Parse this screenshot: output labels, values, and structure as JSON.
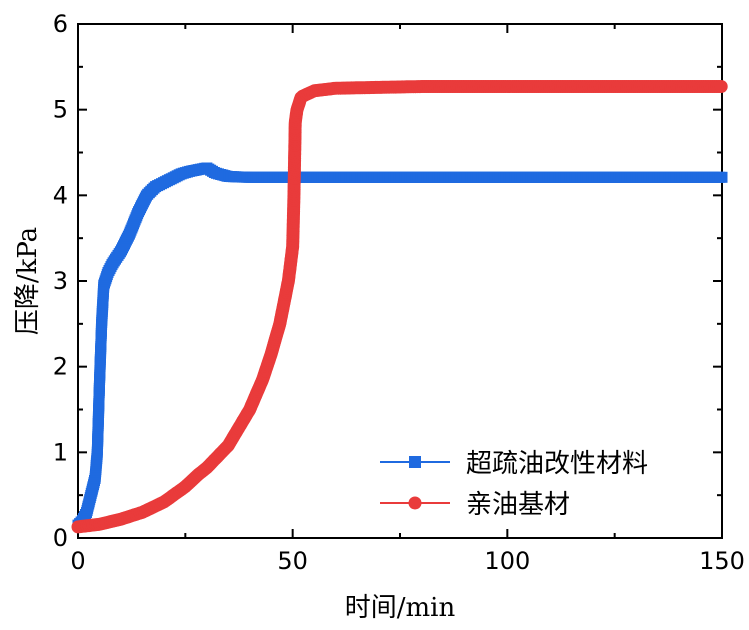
{
  "chart_data": {
    "type": "line",
    "xlabel": "时间/min",
    "ylabel": "压降/kPa",
    "xlim": [
      0,
      150
    ],
    "ylim": [
      0,
      6
    ],
    "xticks": [
      "0",
      "50",
      "100",
      "150"
    ],
    "yticks": [
      "0",
      "1",
      "2",
      "3",
      "4",
      "5",
      "6"
    ],
    "grid": false,
    "legend_position": "bottom-right",
    "series": [
      {
        "name": "超疏油改性材料",
        "color": "#1f6ae0",
        "marker": "square",
        "x": [
          0,
          1,
          2,
          3,
          4,
          4.5,
          5,
          5.5,
          6,
          7,
          8,
          10,
          12,
          14,
          16,
          18,
          20,
          22,
          24,
          26,
          28,
          30,
          32,
          35,
          40,
          50,
          60,
          80,
          100,
          120,
          140,
          150
        ],
        "y": [
          0.15,
          0.2,
          0.3,
          0.5,
          0.7,
          1.0,
          1.8,
          2.5,
          2.95,
          3.1,
          3.2,
          3.35,
          3.55,
          3.8,
          4.0,
          4.1,
          4.15,
          4.2,
          4.25,
          4.28,
          4.3,
          4.32,
          4.26,
          4.22,
          4.21,
          4.21,
          4.21,
          4.21,
          4.21,
          4.21,
          4.21,
          4.21
        ]
      },
      {
        "name": "亲油基材",
        "color": "#e93b3b",
        "marker": "circle",
        "x": [
          0,
          5,
          10,
          15,
          20,
          25,
          28,
          30,
          35,
          40,
          43,
          45,
          47,
          48,
          49,
          49.5,
          50,
          50.3,
          50.6,
          51,
          52,
          55,
          60,
          70,
          80,
          100,
          120,
          140,
          150
        ],
        "y": [
          0.13,
          0.16,
          0.22,
          0.3,
          0.42,
          0.6,
          0.74,
          0.82,
          1.08,
          1.5,
          1.85,
          2.15,
          2.5,
          2.75,
          3.0,
          3.2,
          3.4,
          4.0,
          4.85,
          5.0,
          5.15,
          5.22,
          5.25,
          5.26,
          5.27,
          5.27,
          5.27,
          5.27,
          5.27
        ]
      }
    ]
  }
}
